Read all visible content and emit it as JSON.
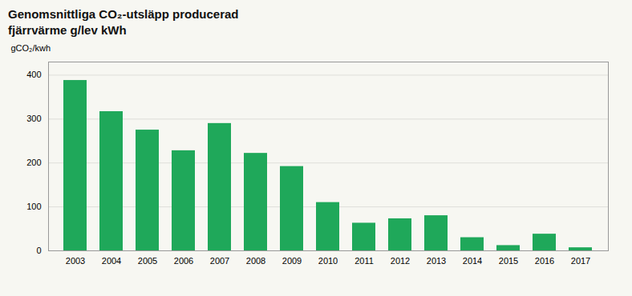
{
  "chart_data": {
    "type": "bar",
    "title": "Genomsnittliga CO₂-utsläpp producerad",
    "subtitle": "fjärrvärme g/lev kWh",
    "ylabel": "gCO₂/kwh",
    "categories": [
      "2003",
      "2004",
      "2005",
      "2006",
      "2007",
      "2008",
      "2009",
      "2010",
      "2011",
      "2012",
      "2013",
      "2014",
      "2015",
      "2016",
      "2017"
    ],
    "values": [
      388,
      317,
      275,
      228,
      290,
      222,
      192,
      110,
      63,
      73,
      80,
      30,
      12,
      38,
      7
    ],
    "color": "#1fa85a",
    "ylim": [
      0,
      430
    ],
    "yticks": [
      0,
      100,
      200,
      300,
      400
    ],
    "grid": true
  }
}
